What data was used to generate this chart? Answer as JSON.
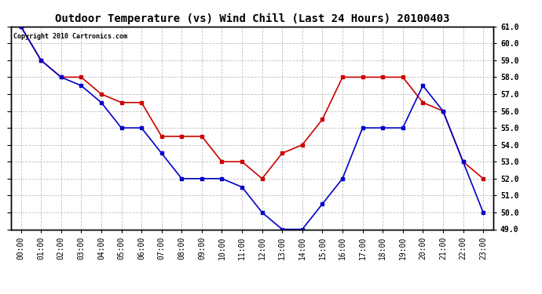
{
  "title": "Outdoor Temperature (vs) Wind Chill (Last 24 Hours) 20100403",
  "copyright_text": "Copyright 2010 Cartronics.com",
  "hours": [
    "00:00",
    "01:00",
    "02:00",
    "03:00",
    "04:00",
    "05:00",
    "06:00",
    "07:00",
    "08:00",
    "09:00",
    "10:00",
    "11:00",
    "12:00",
    "13:00",
    "14:00",
    "15:00",
    "16:00",
    "17:00",
    "18:00",
    "19:00",
    "20:00",
    "21:00",
    "22:00",
    "23:00"
  ],
  "red_temp": [
    61.0,
    59.0,
    58.0,
    58.0,
    57.0,
    56.5,
    56.5,
    54.5,
    54.5,
    54.5,
    53.0,
    53.0,
    52.0,
    53.5,
    54.0,
    55.5,
    58.0,
    58.0,
    58.0,
    58.0,
    56.5,
    56.0,
    53.0,
    52.0
  ],
  "blue_wc": [
    61.0,
    59.0,
    58.0,
    57.5,
    56.5,
    55.0,
    55.0,
    53.5,
    52.0,
    52.0,
    52.0,
    51.5,
    50.0,
    49.0,
    49.0,
    50.5,
    52.0,
    55.0,
    55.0,
    55.0,
    57.5,
    56.0,
    53.0,
    50.0
  ],
  "ylim_min": 49.0,
  "ylim_max": 61.0,
  "ytick_step": 1.0,
  "red_color": "#cc0000",
  "blue_color": "#0000cc",
  "grid_color": "#c0c0c0",
  "bg_color": "#ffffff",
  "title_fontsize": 10,
  "tick_fontsize": 7,
  "copyright_fontsize": 6
}
